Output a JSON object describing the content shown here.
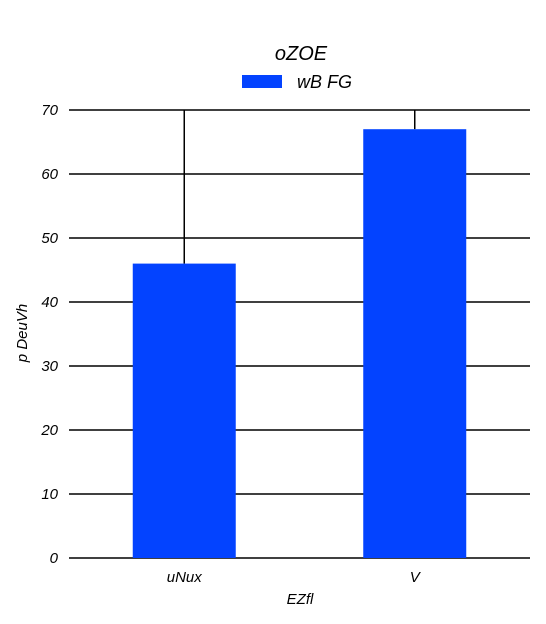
{
  "chart_data": {
    "type": "bar",
    "title": "oZOE",
    "xlabel": "EZfl",
    "ylabel": "p DeuVh",
    "categories": [
      "uNux",
      "V"
    ],
    "series": [
      {
        "name": "wB FG",
        "values": [
          46,
          67
        ],
        "color": "#0343ff",
        "error_upper": [
          70,
          70
        ]
      }
    ],
    "ylim": [
      0,
      70
    ],
    "yticks": [
      0,
      10,
      20,
      30,
      40,
      50,
      60,
      70
    ],
    "ytick_labels": [
      "0",
      "10",
      "20",
      "30",
      "40",
      "50",
      "60",
      "70"
    ],
    "grid": true,
    "legend": "top-center"
  }
}
